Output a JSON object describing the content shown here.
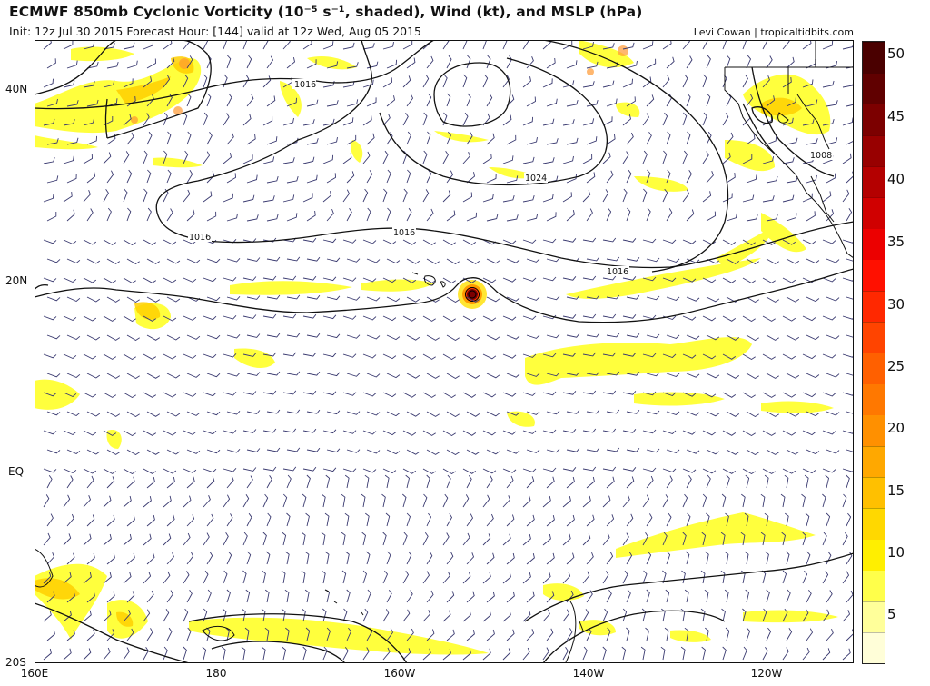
{
  "header": {
    "title": "ECMWF 850mb Cyclonic Vorticity (10⁻⁵ s⁻¹, shaded), Wind (kt), and MSLP (hPa)",
    "subtitle": "Init: 12z Jul 30 2015   Forecast Hour: [144]   valid at 12z Wed, Aug 05 2015",
    "credit": "Levi Cowan | tropicaltidbits.com"
  },
  "axes": {
    "lat_labels": [
      "40N",
      "20N",
      "EQ",
      "20S"
    ],
    "lon_labels": [
      "160E",
      "180",
      "160W",
      "140W",
      "120W"
    ]
  },
  "isobars": {
    "labels": [
      "1016",
      "1024",
      "1016",
      "1016",
      "1016",
      "1008"
    ]
  },
  "colorbar": {
    "ticks": [
      "50",
      "45",
      "40",
      "35",
      "30",
      "25",
      "20",
      "15",
      "10",
      "5"
    ],
    "colors": [
      "#fffed8",
      "#ffff9a",
      "#ffff4a",
      "#ffef00",
      "#ffd800",
      "#ffc000",
      "#ffa800",
      "#ff9000",
      "#ff7800",
      "#ff6000",
      "#ff4400",
      "#ff2800",
      "#ff1000",
      "#ec0000",
      "#d00000",
      "#b40000",
      "#980000",
      "#7c0000",
      "#600000",
      "#4a0000"
    ]
  },
  "colors": {
    "shade_light": "#ffff33",
    "shade_mid": "#ffd000",
    "shade_high": "#ff5a00",
    "barb": "#3a3a70",
    "isobar": "#111111",
    "coast": "#111111"
  }
}
